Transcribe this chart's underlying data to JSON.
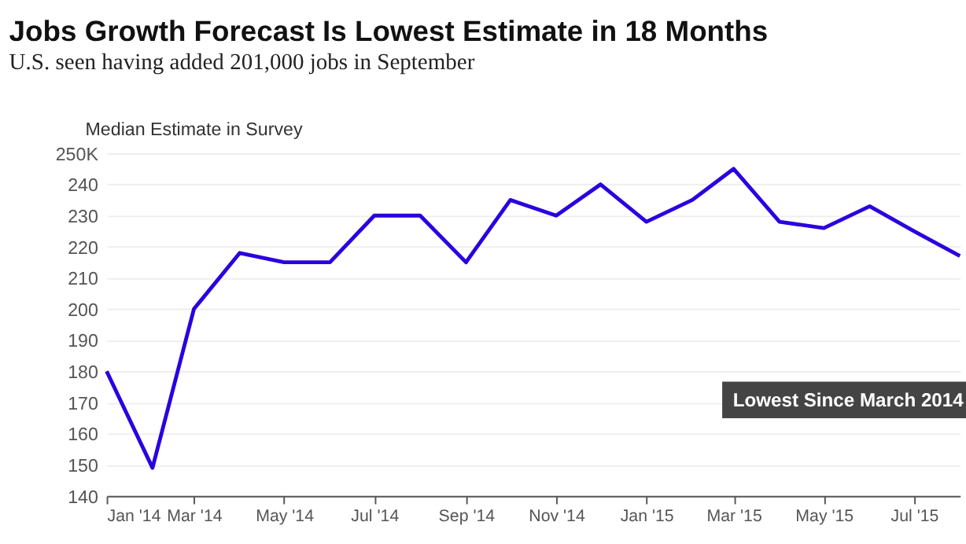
{
  "chart_data": {
    "type": "line",
    "title": "Jobs Growth Forecast Is Lowest Estimate in 18 Months",
    "subtitle": "U.S. seen having added 201,000 jobs in September",
    "x": [
      "2014-01",
      "2014-02",
      "2014-03",
      "2014-04",
      "2014-05",
      "2014-06",
      "2014-07",
      "2014-08",
      "2014-09",
      "2014-10",
      "2014-11",
      "2014-12",
      "2015-01",
      "2015-02",
      "2015-03",
      "2015-04",
      "2015-05",
      "2015-06",
      "2015-07",
      "2015-08"
    ],
    "series": [
      {
        "name": "Median Estimate in Survey",
        "color": "#2a00e0",
        "values": [
          180,
          149,
          200,
          218,
          215,
          215,
          230,
          230,
          215,
          235,
          230,
          240,
          228,
          235,
          245,
          228,
          226,
          233,
          225,
          217
        ]
      }
    ],
    "xlim": [
      "2014-01",
      "2015-08"
    ],
    "xticks": [
      {
        "value": "2014-01",
        "label": "Jan '14"
      },
      {
        "value": "2014-03",
        "label": "Mar '14"
      },
      {
        "value": "2014-05",
        "label": "May '14"
      },
      {
        "value": "2014-07",
        "label": "Jul '14"
      },
      {
        "value": "2014-09",
        "label": "Sep '14"
      },
      {
        "value": "2014-11",
        "label": "Nov '14"
      },
      {
        "value": "2015-01",
        "label": "Jan '15"
      },
      {
        "value": "2015-03",
        "label": "Mar '15"
      },
      {
        "value": "2015-05",
        "label": "May '15"
      },
      {
        "value": "2015-07",
        "label": "Jul '15"
      }
    ],
    "ylim": [
      140,
      250
    ],
    "yticks": [
      140,
      150,
      160,
      170,
      180,
      190,
      200,
      210,
      220,
      230,
      240,
      {
        "value": 250,
        "label": "250K"
      }
    ],
    "grid": "y",
    "legend": "top left",
    "marker": "none",
    "line_style": "solid",
    "annotations": [
      "Lowest Since March 2014"
    ]
  }
}
